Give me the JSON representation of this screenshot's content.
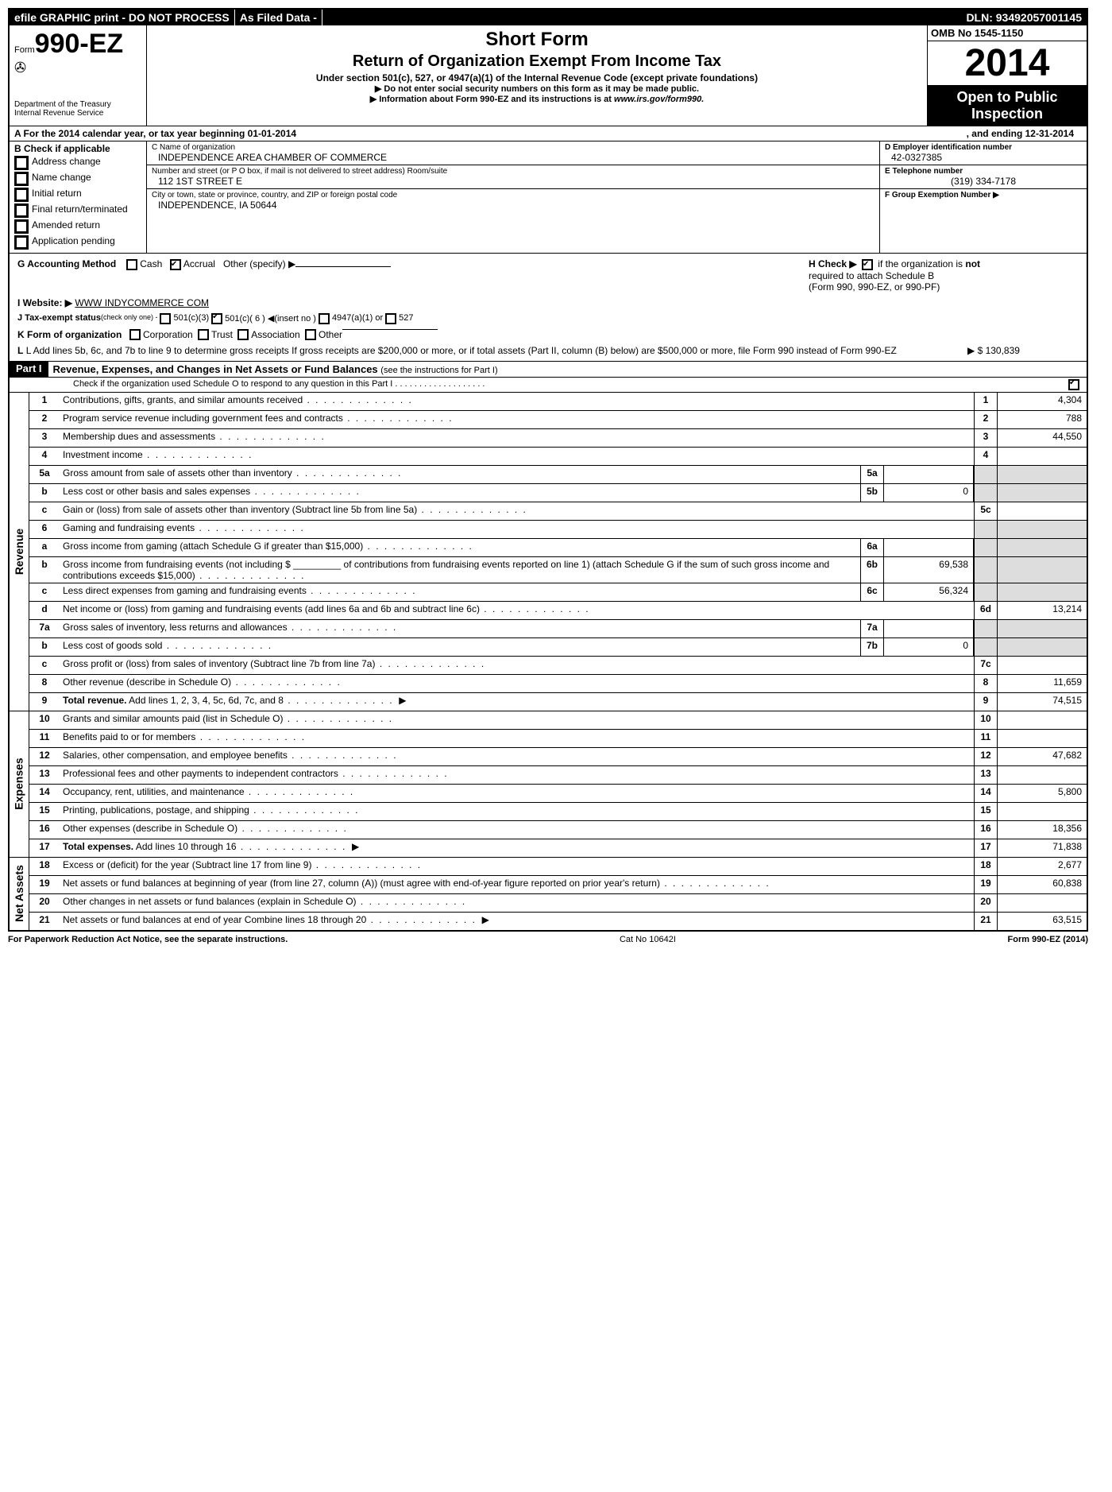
{
  "topbar": {
    "efile": "efile GRAPHIC print - DO NOT PROCESS",
    "asfiled": "As Filed Data -",
    "dln": "DLN: 93492057001145"
  },
  "header": {
    "form_prefix": "Form",
    "form_no": "990-EZ",
    "dept1": "Department of the Treasury",
    "dept2": "Internal Revenue Service",
    "short": "Short Form",
    "title": "Return of Organization Exempt From Income Tax",
    "subtitle": "Under section 501(c), 527, or 4947(a)(1) of the Internal Revenue Code (except private foundations)",
    "note1": "▶ Do not enter social security numbers on this form as it may be made public.",
    "note2_pre": "▶ Information about Form 990-EZ and its instructions is at ",
    "note2_link": "www.irs.gov/form990.",
    "omb": "OMB No 1545-1150",
    "year": "2014",
    "open1": "Open to Public",
    "open2": "Inspection"
  },
  "lineA": {
    "left": "A  For the 2014 calendar year, or tax year beginning 01-01-2014",
    "mid": ", and ending 12-31-2014"
  },
  "sectionB": {
    "title": "B  Check if applicable",
    "items": [
      "Address change",
      "Name change",
      "Initial return",
      "Final return/terminated",
      "Amended return",
      "Application pending"
    ]
  },
  "sectionC": {
    "name_label": "C Name of organization",
    "name_value": "INDEPENDENCE AREA CHAMBER OF COMMERCE",
    "street_label": "Number and street (or P O box, if mail is not delivered to street address) Room/suite",
    "street_value": "112 1ST STREET E",
    "city_label": "City or town, state or province, country, and ZIP or foreign postal code",
    "city_value": "INDEPENDENCE, IA  50644"
  },
  "sectionD": {
    "label": "D Employer identification number",
    "value": "42-0327385",
    "e_label": "E Telephone number",
    "e_value": "(319) 334-7178",
    "f_label": "F Group Exemption Number  ▶"
  },
  "sectionG": {
    "g": "G Accounting Method",
    "cash": "Cash",
    "accrual": "Accrual",
    "other": "Other (specify) ▶",
    "h1": "H  Check ▶",
    "h2": "if the organization is",
    "h_not": "not",
    "h3": "required to attach Schedule B",
    "h4": "(Form 990, 990-EZ, or 990-PF)",
    "i": "I Website: ▶",
    "i_val": "WWW INDYCOMMERCE COM",
    "j": "J Tax-exempt status",
    "j_note": "(check only one) -",
    "j_501c3": "501(c)(3)",
    "j_501c": "501(c)( 6 ) ◀(insert no )",
    "j_4947": "4947(a)(1) or",
    "j_527": "527",
    "k": "K Form of organization",
    "k_opts": [
      "Corporation",
      "Trust",
      "Association",
      "Other"
    ],
    "l": "L Add lines 5b, 6c, and 7b to line 9 to determine gross receipts  If gross receipts are $200,000 or more, or if total assets (Part II, column (B) below) are $500,000 or more, file Form 990 instead of Form 990-EZ",
    "l_val": "▶ $ 130,839"
  },
  "part1": {
    "tag": "Part I",
    "title": "Revenue, Expenses, and Changes in Net Assets or Fund Balances",
    "title_note": "(see the instructions for Part I)",
    "subnote": "Check if the organization used Schedule O to respond to any question in this Part I  . . . . . . . . . . . . . . . . . . ."
  },
  "revenue_label": "Revenue",
  "expenses_label": "Expenses",
  "netassets_label": "Net Assets",
  "lines": {
    "l1": {
      "n": "1",
      "d": "Contributions, gifts, grants, and similar amounts received",
      "rn": "1",
      "rv": "4,304"
    },
    "l2": {
      "n": "2",
      "d": "Program service revenue including government fees and contracts",
      "rn": "2",
      "rv": "788"
    },
    "l3": {
      "n": "3",
      "d": "Membership dues and assessments",
      "rn": "3",
      "rv": "44,550"
    },
    "l4": {
      "n": "4",
      "d": "Investment income",
      "rn": "4",
      "rv": ""
    },
    "l5a": {
      "n": "5a",
      "d": "Gross amount from sale of assets other than inventory",
      "mn": "5a",
      "mv": ""
    },
    "l5b": {
      "n": "b",
      "d": "Less  cost or other basis and sales expenses",
      "mn": "5b",
      "mv": "0"
    },
    "l5c": {
      "n": "c",
      "d": "Gain or (loss) from sale of assets other than inventory (Subtract line 5b from line 5a)",
      "rn": "5c",
      "rv": ""
    },
    "l6": {
      "n": "6",
      "d": "Gaming and fundraising events"
    },
    "l6a": {
      "n": "a",
      "d": "Gross income from gaming (attach Schedule G if greater than $15,000)",
      "mn": "6a",
      "mv": ""
    },
    "l6b": {
      "n": "b",
      "d": "Gross income from fundraising events (not including $ _________ of contributions from fundraising events reported on line 1) (attach Schedule G if the sum of such gross income and contributions exceeds $15,000)",
      "mn": "6b",
      "mv": "69,538"
    },
    "l6c": {
      "n": "c",
      "d": "Less  direct expenses from gaming and fundraising events",
      "mn": "6c",
      "mv": "56,324"
    },
    "l6d": {
      "n": "d",
      "d": "Net income or (loss) from gaming and fundraising events (add lines 6a and 6b and subtract line 6c)",
      "rn": "6d",
      "rv": "13,214"
    },
    "l7a": {
      "n": "7a",
      "d": "Gross sales of inventory, less returns and allowances",
      "mn": "7a",
      "mv": ""
    },
    "l7b": {
      "n": "b",
      "d": "Less  cost of goods sold",
      "mn": "7b",
      "mv": "0"
    },
    "l7c": {
      "n": "c",
      "d": "Gross profit or (loss) from sales of inventory (Subtract line 7b from line 7a)",
      "rn": "7c",
      "rv": ""
    },
    "l8": {
      "n": "8",
      "d": "Other revenue (describe in Schedule O)",
      "rn": "8",
      "rv": "11,659"
    },
    "l9": {
      "n": "9",
      "d": "Total revenue. Add lines 1, 2, 3, 4, 5c, 6d, 7c, and 8",
      "rn": "9",
      "rv": "74,515",
      "bold": true,
      "arrow": true
    },
    "l10": {
      "n": "10",
      "d": "Grants and similar amounts paid (list in Schedule O)",
      "rn": "10",
      "rv": ""
    },
    "l11": {
      "n": "11",
      "d": "Benefits paid to or for members",
      "rn": "11",
      "rv": ""
    },
    "l12": {
      "n": "12",
      "d": "Salaries, other compensation, and employee benefits",
      "rn": "12",
      "rv": "47,682"
    },
    "l13": {
      "n": "13",
      "d": "Professional fees and other payments to independent contractors",
      "rn": "13",
      "rv": ""
    },
    "l14": {
      "n": "14",
      "d": "Occupancy, rent, utilities, and maintenance",
      "rn": "14",
      "rv": "5,800"
    },
    "l15": {
      "n": "15",
      "d": "Printing, publications, postage, and shipping",
      "rn": "15",
      "rv": ""
    },
    "l16": {
      "n": "16",
      "d": "Other expenses (describe in Schedule O)",
      "rn": "16",
      "rv": "18,356"
    },
    "l17": {
      "n": "17",
      "d": "Total expenses. Add lines 10 through 16",
      "rn": "17",
      "rv": "71,838",
      "bold": true,
      "arrow": true
    },
    "l18": {
      "n": "18",
      "d": "Excess or (deficit) for the year (Subtract line 17 from line 9)",
      "rn": "18",
      "rv": "2,677"
    },
    "l19": {
      "n": "19",
      "d": "Net assets or fund balances at beginning of year (from line 27, column (A)) (must agree with end-of-year figure reported on prior year's return)",
      "rn": "19",
      "rv": "60,838"
    },
    "l20": {
      "n": "20",
      "d": "Other changes in net assets or fund balances (explain in Schedule O)",
      "rn": "20",
      "rv": ""
    },
    "l21": {
      "n": "21",
      "d": "Net assets or fund balances at end of year  Combine lines 18 through 20",
      "rn": "21",
      "rv": "63,515",
      "arrow": true
    }
  },
  "footer": {
    "left": "For Paperwork Reduction Act Notice, see the separate instructions.",
    "mid": "Cat No 10642I",
    "right": "Form 990-EZ (2014)"
  }
}
